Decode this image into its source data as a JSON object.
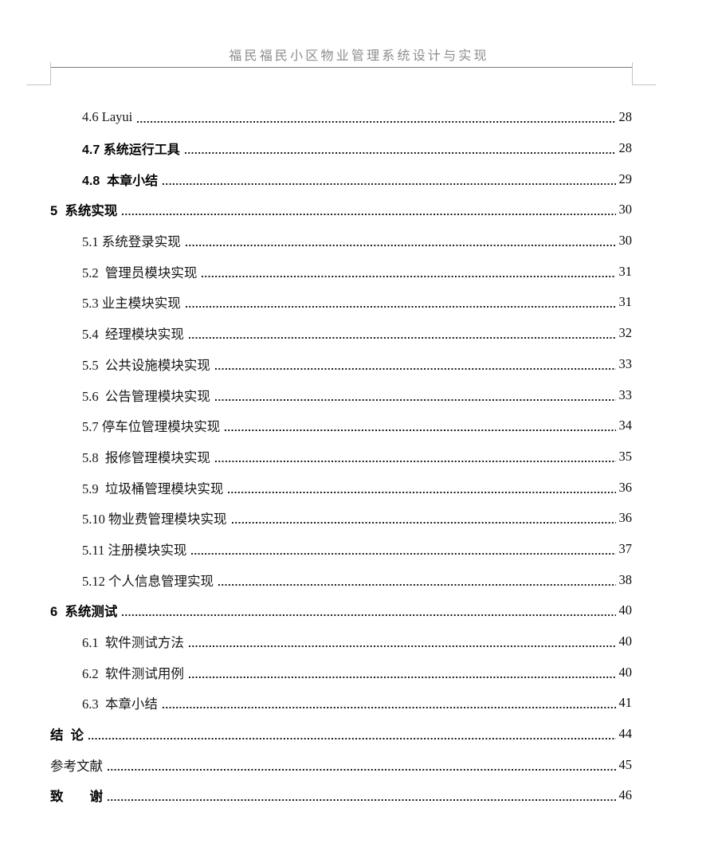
{
  "document": {
    "header_title": "福民福民小区物业管理系统设计与实现"
  },
  "toc": {
    "items": [
      {
        "label": "4.6 Layui",
        "page": "28",
        "level": 2,
        "font": "song"
      },
      {
        "label": "4.7 系统运行工具",
        "page": "28",
        "level": 2,
        "font": "hei"
      },
      {
        "label": "4.8  本章小结",
        "page": "29",
        "level": 2,
        "font": "hei"
      },
      {
        "label": "5  系统实现",
        "page": "30",
        "level": 1,
        "font": "hei"
      },
      {
        "label": "5.1 系统登录实现",
        "page": "30",
        "level": 2,
        "font": "song"
      },
      {
        "label": "5.2  管理员模块实现",
        "page": "31",
        "level": 2,
        "font": "song"
      },
      {
        "label": "5.3 业主模块实现",
        "page": "31",
        "level": 2,
        "font": "song"
      },
      {
        "label": "5.4  经理模块实现",
        "page": "32",
        "level": 2,
        "font": "song"
      },
      {
        "label": "5.5  公共设施模块实现",
        "page": "33",
        "level": 2,
        "font": "song"
      },
      {
        "label": "5.6  公告管理模块实现",
        "page": "33",
        "level": 2,
        "font": "song"
      },
      {
        "label": "5.7 停车位管理模块实现",
        "page": "34",
        "level": 2,
        "font": "song"
      },
      {
        "label": "5.8  报修管理模块实现",
        "page": "35",
        "level": 2,
        "font": "song"
      },
      {
        "label": "5.9  垃圾桶管理模块实现",
        "page": "36",
        "level": 2,
        "font": "song"
      },
      {
        "label": "5.10 物业费管理模块实现",
        "page": "36",
        "level": 2,
        "font": "song"
      },
      {
        "label": "5.11 注册模块实现",
        "page": "37",
        "level": 2,
        "font": "song"
      },
      {
        "label": "5.12 个人信息管理实现",
        "page": "38",
        "level": 2,
        "font": "song"
      },
      {
        "label": "6  系统测试",
        "page": "40",
        "level": 1,
        "font": "hei"
      },
      {
        "label": "6.1  软件测试方法",
        "page": "40",
        "level": 2,
        "font": "song"
      },
      {
        "label": "6.2  软件测试用例",
        "page": "40",
        "level": 2,
        "font": "song"
      },
      {
        "label": "6.3  本章小结",
        "page": "41",
        "level": 2,
        "font": "song"
      },
      {
        "label": "结  论",
        "page": "44",
        "level": 1,
        "font": "hei"
      },
      {
        "label": "参考文献",
        "page": "45",
        "level": 1,
        "font": "song"
      },
      {
        "label": "致　　谢",
        "page": "46",
        "level": 1,
        "font": "hei"
      }
    ]
  },
  "colors": {
    "header_text": "#8c8c8c",
    "header_rule": "#7a7a7a",
    "margin_mark": "#c4c4c4",
    "body_text": "#0a0a0a",
    "page_background": "#ffffff"
  }
}
